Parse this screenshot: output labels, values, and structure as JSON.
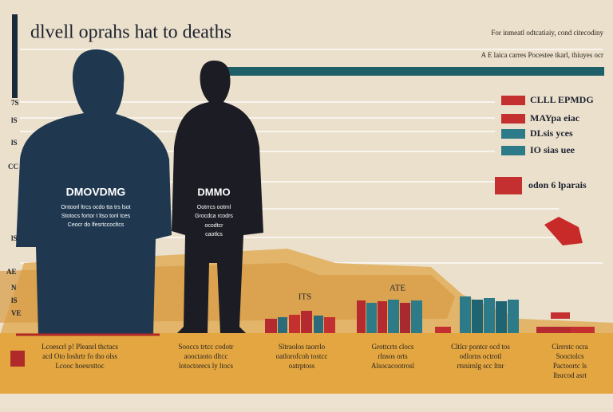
{
  "header": {
    "title": "dlvell oprahs hat to deaths",
    "note_lines": [
      "For inmeatl odtcatiaiy, cond citecodiny",
      "A E laica carres Pocestee tkarl, thiuyes ocr"
    ]
  },
  "legend": [
    "CLLL EPMDG",
    "MAYpa eiac",
    "DLsis yces",
    "IO sias uee",
    "odon 6 lparais"
  ],
  "axis_labels": [
    "7S",
    "lS",
    "lS",
    "CC",
    "lS",
    "AE",
    "N",
    "lS",
    "VE"
  ],
  "figures": [
    {
      "label": "DMOVDMG",
      "caption": [
        "Ontoorl ltrcs ocdo tta trs lsot",
        "Stotocs fortor t ltso tonl tces",
        "Ceocr do lfesrtccocltcs"
      ]
    },
    {
      "label": "DMMO",
      "caption": [
        "Ootrrcs ootrnl",
        "Grocdca rcodrs",
        "ocodtcr",
        "caotlcs"
      ]
    }
  ],
  "bar_labels": [
    "ITS",
    "ATE"
  ],
  "footer": [
    "Lcoescrl p! Pleanrl thctacs",
    "acd Oto loshrtr fo tho olss",
    "Lcooc hoesrsttoc",
    "Sooccs trtcc codotr",
    "aooctaoto dltcc",
    "lotoctorecs ly ltocs",
    "Sltraolos taorrlo",
    "oatlorofcoh tostcc",
    "oatrptoss",
    "Grottcrts clocs",
    "rlnsos orts",
    "Alsocacootrosl",
    "Cltlcr pontcr ocd tos",
    "odlorns octrotl",
    "rtsnirnlg scc ltnr",
    "Cirrrstc ocra",
    "Sooctolcs",
    "Pactoortc ls",
    "lhsrcod asrt"
  ]
}
